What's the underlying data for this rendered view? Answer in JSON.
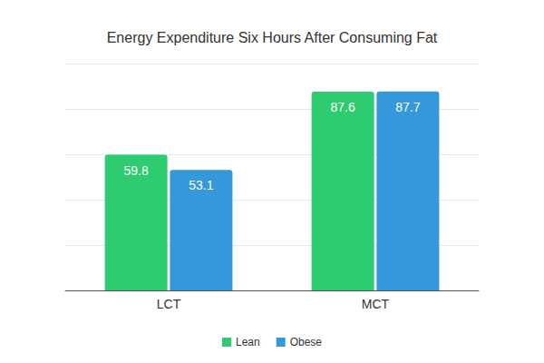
{
  "chart_data": {
    "type": "bar",
    "title": "Energy Expenditure Six Hours After Consuming Fat",
    "categories": [
      "LCT",
      "MCT"
    ],
    "series": [
      {
        "name": "Lean",
        "color": "#2ecc71",
        "values": [
          59.8,
          87.6
        ]
      },
      {
        "name": "Obese",
        "color": "#3498db",
        "values": [
          53.1,
          87.7
        ]
      }
    ],
    "ylim": [
      0,
      100
    ],
    "yticks": [
      0,
      20,
      40,
      60,
      80,
      100
    ],
    "grid": true,
    "legend": "bottom",
    "data_labels": true,
    "tick_labels": "x"
  }
}
